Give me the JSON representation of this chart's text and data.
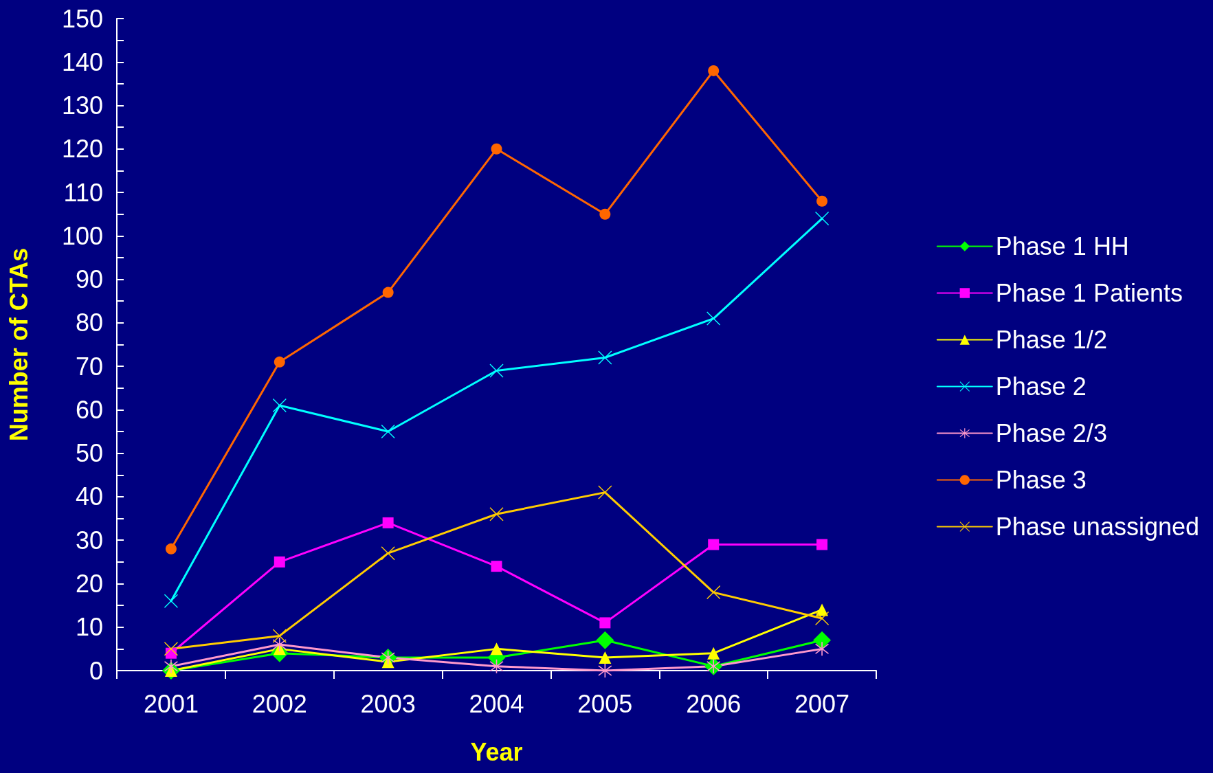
{
  "chart_data": {
    "type": "line",
    "xlabel": "Year",
    "ylabel": "Number of CTAs",
    "categories": [
      "2001",
      "2002",
      "2003",
      "2004",
      "2005",
      "2006",
      "2007"
    ],
    "ylim": [
      0,
      150
    ],
    "yticks": [
      0,
      {
        "value": 5,
        "label": null
      },
      10,
      {
        "value": 15,
        "label": null
      },
      20,
      {
        "value": 25,
        "label": null
      },
      30,
      {
        "value": 35,
        "label": null
      },
      40,
      {
        "value": 45,
        "label": null
      },
      50,
      {
        "value": 55,
        "label": null
      },
      60,
      {
        "value": 65,
        "label": null
      },
      70,
      {
        "value": 75,
        "label": null
      },
      80,
      {
        "value": 85,
        "label": null
      },
      90,
      {
        "value": 95,
        "label": null
      },
      100,
      {
        "value": 105,
        "label": null
      },
      110,
      {
        "value": 115,
        "label": null
      },
      120,
      {
        "value": 125,
        "label": null
      },
      130,
      {
        "value": 135,
        "label": null
      },
      140,
      {
        "value": 145,
        "label": null
      },
      150
    ],
    "grid": false,
    "legend": "right",
    "line_style": "solid",
    "series": [
      {
        "name": "Phase 1 HH",
        "color": "#00ff00",
        "marker": "diamond",
        "values": [
          0,
          4,
          3,
          3,
          7,
          1,
          7
        ]
      },
      {
        "name": "Phase 1 Patients",
        "color": "#ff00ff",
        "marker": "square",
        "values": [
          4,
          25,
          34,
          24,
          11,
          29,
          29
        ]
      },
      {
        "name": "Phase 1/2",
        "color": "#ffff00",
        "marker": "triangle",
        "values": [
          0,
          5,
          2,
          5,
          3,
          4,
          14
        ]
      },
      {
        "name": "Phase 2",
        "color": "#00ffff",
        "marker": "cross",
        "values": [
          16,
          61,
          55,
          69,
          72,
          81,
          104
        ]
      },
      {
        "name": "Phase 2/3",
        "color": "#ff99cc",
        "marker": "star",
        "values": [
          1,
          6,
          3,
          1,
          0,
          1,
          5
        ]
      },
      {
        "name": "Phase 3",
        "color": "#ff6600",
        "marker": "circle",
        "values": [
          28,
          71,
          87,
          120,
          105,
          138,
          108
        ]
      },
      {
        "name": "Phase unassigned",
        "color": "#ffcc00",
        "marker": "cross",
        "values": [
          5,
          8,
          27,
          36,
          41,
          18,
          12
        ]
      }
    ]
  }
}
